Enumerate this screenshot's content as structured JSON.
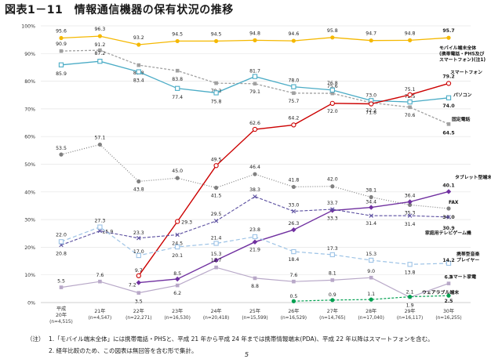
{
  "figure_title": "図表1－11　情報通信機器の保有状況の推移",
  "page_number": "5",
  "notes": {
    "prefix": "（注）",
    "lines": [
      "1.「モバイル端末全体」には携帯電話・PHSと、平成 21 年から平成 24 年までは携帯情報端末(PDA)、平成 22 年以降はスマートフォンを含む。",
      "2. 経年比較のため、この図表は無回答を含む形で集計。"
    ]
  },
  "chart_data": {
    "type": "line",
    "title": "図表1－11　情報通信機器の保有状況の推移",
    "xlabel": "",
    "ylabel": "",
    "ylim": [
      0,
      100
    ],
    "y_ticks": [
      "0%",
      "10%",
      "20%",
      "30%",
      "40%",
      "50%",
      "60%",
      "70%",
      "80%",
      "90%",
      "100%"
    ],
    "grid": true,
    "legend": "labels at right end of lines",
    "x_era": "平成",
    "categories": [
      "20年",
      "21年",
      "22年",
      "23年",
      "24年",
      "25年",
      "26年",
      "27年",
      "28年",
      "29年",
      "30年"
    ],
    "sample_sizes": [
      "(n=4,515)",
      "(n=4,547)",
      "(n=22,271)",
      "(n=16,530)",
      "(n=20,418)",
      "(n=15,599)",
      "(n=16,529)",
      "(n=14,765)",
      "(n=17,040)",
      "(n=16,117)",
      "(n=16,255)"
    ],
    "series": [
      {
        "name": "モバイル端末全体\n(携帯電話・PHS及び\nスマートフォン)(注1)",
        "color": "#f5b800",
        "dash": "",
        "marker": "circle-filled",
        "width": 1.3,
        "values": [
          95.6,
          96.3,
          93.2,
          94.5,
          94.5,
          94.8,
          94.6,
          95.8,
          94.7,
          94.8,
          95.7
        ],
        "labels": [
          "95.6",
          "96.3",
          "93.2",
          "94.5",
          "94.5",
          "94.8",
          "94.6",
          "95.8",
          "94.7",
          "94.8",
          "95.7"
        ]
      },
      {
        "name": "固定電話",
        "color": "#a0a0a0",
        "dash": "3,2",
        "marker": "square-filled",
        "width": 1.3,
        "values": [
          90.9,
          91.2,
          85.8,
          83.8,
          79.3,
          79.1,
          75.7,
          75.6,
          72.2,
          70.6,
          64.5
        ],
        "labels": [
          "90.9",
          "91.2",
          "85.8",
          "83.8",
          "79.3",
          "79.1",
          "75.7",
          "75.6",
          "72.2",
          "70.6",
          "64.5"
        ]
      },
      {
        "name": "パソコン",
        "color": "#4bacc6",
        "dash": "",
        "marker": "square-open",
        "width": 1.3,
        "values": [
          85.9,
          87.2,
          83.4,
          77.4,
          75.8,
          81.7,
          78.0,
          76.8,
          73.0,
          72.5,
          74.0
        ],
        "labels": [
          "85.9",
          "87.2",
          "83.4",
          "77.4",
          "75.8",
          "81.7",
          "78.0",
          "76.8",
          "73.0",
          "72.5",
          "74.0"
        ]
      },
      {
        "name": "スマートフォン",
        "color": "#cc0000",
        "dash": "",
        "marker": "circle-open",
        "width": 1.4,
        "values": [
          null,
          null,
          9.7,
          29.3,
          49.5,
          62.6,
          64.2,
          72.0,
          71.8,
          75.1,
          79.2
        ],
        "labels": [
          "",
          "",
          "9.7",
          "29.3",
          "49.5",
          "62.6",
          "64.2",
          "72.0",
          "71.8",
          "75.1",
          "79.2"
        ]
      },
      {
        "name": "FAX",
        "color": "#808080",
        "dash": "1,2",
        "marker": "circle-filled",
        "width": 1.2,
        "values": [
          53.5,
          57.1,
          43.8,
          45.0,
          41.5,
          46.4,
          41.8,
          42.0,
          38.1,
          35.3,
          34.0
        ],
        "labels": [
          "53.5",
          "57.1",
          "43.8",
          "45.0",
          "41.5",
          "46.4",
          "41.8",
          "42.0",
          "38.1",
          "35.3",
          "34.0"
        ]
      },
      {
        "name": "タブレット型端末",
        "color": "#7030a0",
        "dash": "",
        "marker": "diamond-filled",
        "width": 1.4,
        "values": [
          null,
          null,
          7.2,
          8.5,
          15.3,
          21.9,
          26.3,
          33.3,
          34.4,
          36.4,
          40.1
        ],
        "labels": [
          "",
          "",
          "7.2",
          "8.5",
          "15.3",
          "21.9",
          "26.3",
          "33.3",
          "34.4",
          "36.4",
          "40.1"
        ]
      },
      {
        "name": "家庭用テレビゲーム機",
        "color": "#5b4fa0",
        "dash": "4,2",
        "marker": "x",
        "width": 1.1,
        "values": [
          20.8,
          25.9,
          23.3,
          24.5,
          29.5,
          38.3,
          33.0,
          33.7,
          31.4,
          31.4,
          30.9
        ],
        "labels": [
          "20.8",
          "25.9",
          "23.3",
          "24.5",
          "29.5",
          "38.3",
          "33.0",
          "33.7",
          "31.4",
          "31.4",
          "30.9"
        ]
      },
      {
        "name": "携帯型音楽\nプレイヤー",
        "color": "#9dc3e6",
        "dash": "5,3",
        "marker": "square-open",
        "width": 1.2,
        "values": [
          22.0,
          27.3,
          17.0,
          20.1,
          21.4,
          23.8,
          18.4,
          17.3,
          15.3,
          13.8,
          14.2
        ],
        "labels": [
          "22.0",
          "27.3",
          "17.0",
          "20.1",
          "21.4",
          "23.8",
          "18.4",
          "17.3",
          "15.3",
          "13.8",
          "14.2"
        ]
      },
      {
        "name": "スマート家電",
        "color": "#b8a8c8",
        "dash": "",
        "marker": "square-filled",
        "width": 1.2,
        "values": [
          5.5,
          7.6,
          3.5,
          6.2,
          12.7,
          8.8,
          7.6,
          8.1,
          9.0,
          1.9,
          6.9
        ],
        "labels": [
          "5.5",
          "7.6",
          "3.5",
          "6.2",
          "12.7",
          "8.8",
          "7.6",
          "8.1",
          "9.0",
          "1.9",
          "6.9"
        ]
      },
      {
        "name": "ウェアラブル端末",
        "color": "#00a050",
        "dash": "3,2",
        "marker": "circle-filled",
        "width": 1.2,
        "values": [
          null,
          null,
          null,
          null,
          null,
          null,
          0.5,
          0.9,
          1.1,
          2.1,
          2.5
        ],
        "labels": [
          "",
          "",
          "",
          "",
          "",
          "",
          "0.5",
          "0.9",
          "1.1",
          "2.1",
          "2.5"
        ]
      }
    ]
  }
}
